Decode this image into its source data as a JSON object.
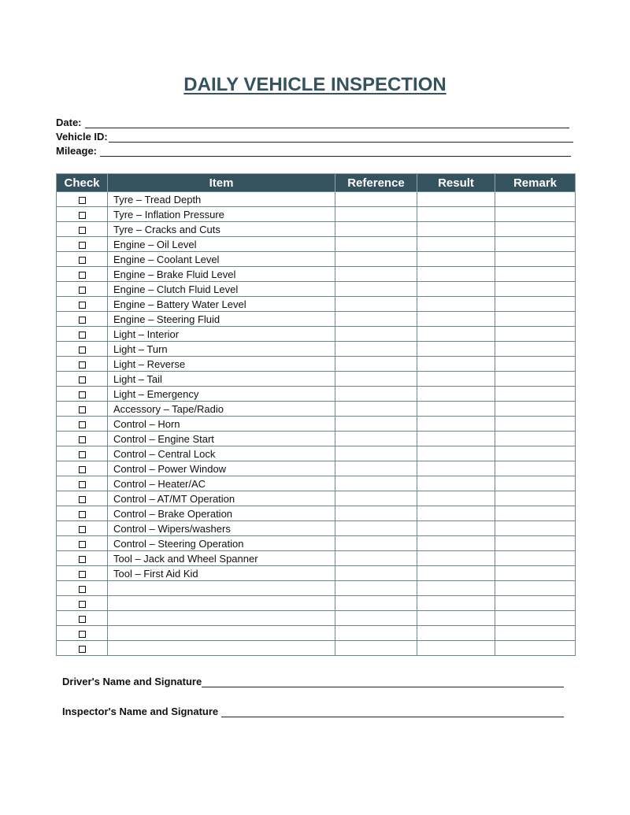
{
  "title": "DAILY VEHICLE INSPECTION",
  "fields": [
    {
      "label": "Date:"
    },
    {
      "label": "Vehicle ID:"
    },
    {
      "label": "Mileage:"
    }
  ],
  "table": {
    "headers": [
      "Check",
      "Item",
      "Reference",
      "Result",
      "Remark"
    ],
    "items": [
      "Tyre – Tread Depth",
      "Tyre – Inflation Pressure",
      "Tyre – Cracks and Cuts",
      "Engine – Oil Level",
      "Engine – Coolant Level",
      "Engine – Brake Fluid Level",
      "Engine – Clutch Fluid Level",
      "Engine – Battery Water Level",
      "Engine – Steering Fluid",
      "Light – Interior",
      "Light – Turn",
      "Light – Reverse",
      "Light – Tail",
      "Light – Emergency",
      "Accessory – Tape/Radio",
      "Control – Horn",
      "Control – Engine Start",
      "Control – Central Lock",
      "Control – Power Window",
      "Control – Heater/AC",
      "Control – AT/MT Operation",
      "Control – Brake Operation",
      "Control – Wipers/washers",
      "Control – Steering Operation",
      "Tool – Jack and Wheel Spanner",
      "Tool – First Aid Kid",
      "",
      "",
      "",
      "",
      ""
    ]
  },
  "signatures": [
    {
      "label": "Driver's Name and Signature"
    },
    {
      "label": "Inspector's Name and Signature"
    }
  ],
  "colors": {
    "header_bg": "#34535f",
    "title": "#34535f"
  }
}
